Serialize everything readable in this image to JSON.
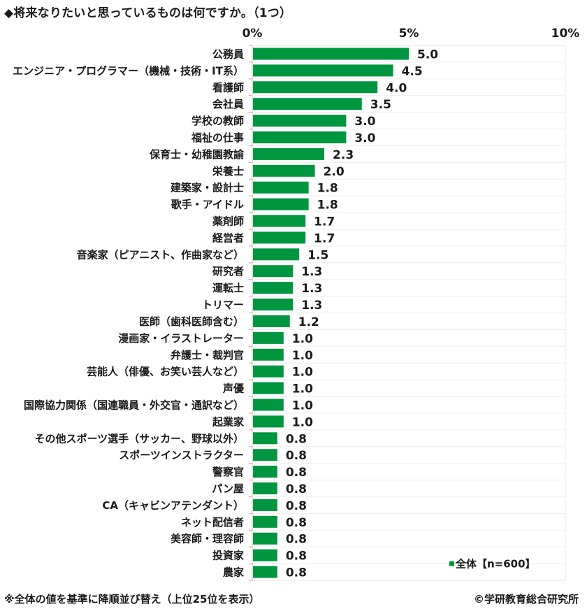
{
  "page": {
    "title": "◆将来なりたいと思っているものは何ですか。（1つ）",
    "footnote": "※全体の値を基準に降順並び替え（上位25位を表示）",
    "copyright": "©学研教育総合研究所"
  },
  "chart_data": {
    "type": "bar",
    "orientation": "horizontal",
    "title": "◆将来なりたいと思っているものは何ですか。（1つ）",
    "xlabel": "",
    "ylabel": "",
    "xlim": [
      0,
      10
    ],
    "x_ticks": [
      0,
      5,
      10
    ],
    "x_tick_labels": [
      "0%",
      "5%",
      "10%"
    ],
    "x_axis_position": "top",
    "grid": "horizontal row separators",
    "legend": {
      "position": "bottom-right",
      "entries": [
        "全体【n=600】"
      ]
    },
    "bar_color": "#00953f",
    "categories": [
      "公務員",
      "エンジニア・プログラマー（機械・技術・IT系）",
      "看護師",
      "会社員",
      "学校の教師",
      "福祉の仕事",
      "保育士・幼稚園教諭",
      "栄養士",
      "建築家・設計士",
      "歌手・アイドル",
      "薬剤師",
      "経営者",
      "音楽家（ピアニスト、作曲家など）",
      "研究者",
      "運転士",
      "トリマー",
      "医師（歯科医師含む）",
      "漫画家・イラストレーター",
      "弁護士・裁判官",
      "芸能人（俳優、お笑い芸人など）",
      "声優",
      "国際協力関係（国連職員・外交官・通訳など）",
      "起業家",
      "その他スポーツ選手（サッカー、野球以外）",
      "スポーツインストラクター",
      "警察官",
      "パン屋",
      "CA（キャビンアテンダント）",
      "ネット配信者",
      "美容師・理容師",
      "投資家",
      "農家"
    ],
    "series": [
      {
        "name": "全体【n=600】",
        "values": [
          5.0,
          4.5,
          4.0,
          3.5,
          3.0,
          3.0,
          2.3,
          2.0,
          1.8,
          1.8,
          1.7,
          1.7,
          1.5,
          1.3,
          1.3,
          1.3,
          1.2,
          1.0,
          1.0,
          1.0,
          1.0,
          1.0,
          1.0,
          0.8,
          0.8,
          0.8,
          0.8,
          0.8,
          0.8,
          0.8,
          0.8,
          0.8
        ],
        "labels": [
          "5.0",
          "4.5",
          "4.0",
          "3.5",
          "3.0",
          "3.0",
          "2.3",
          "2.0",
          "1.8",
          "1.8",
          "1.7",
          "1.7",
          "1.5",
          "1.3",
          "1.3",
          "1.3",
          "1.2",
          "1.0",
          "1.0",
          "1.0",
          "1.0",
          "1.0",
          "1.0",
          "0.8",
          "0.8",
          "0.8",
          "0.8",
          "0.8",
          "0.8",
          "0.8",
          "0.8",
          "0.8"
        ]
      }
    ]
  }
}
